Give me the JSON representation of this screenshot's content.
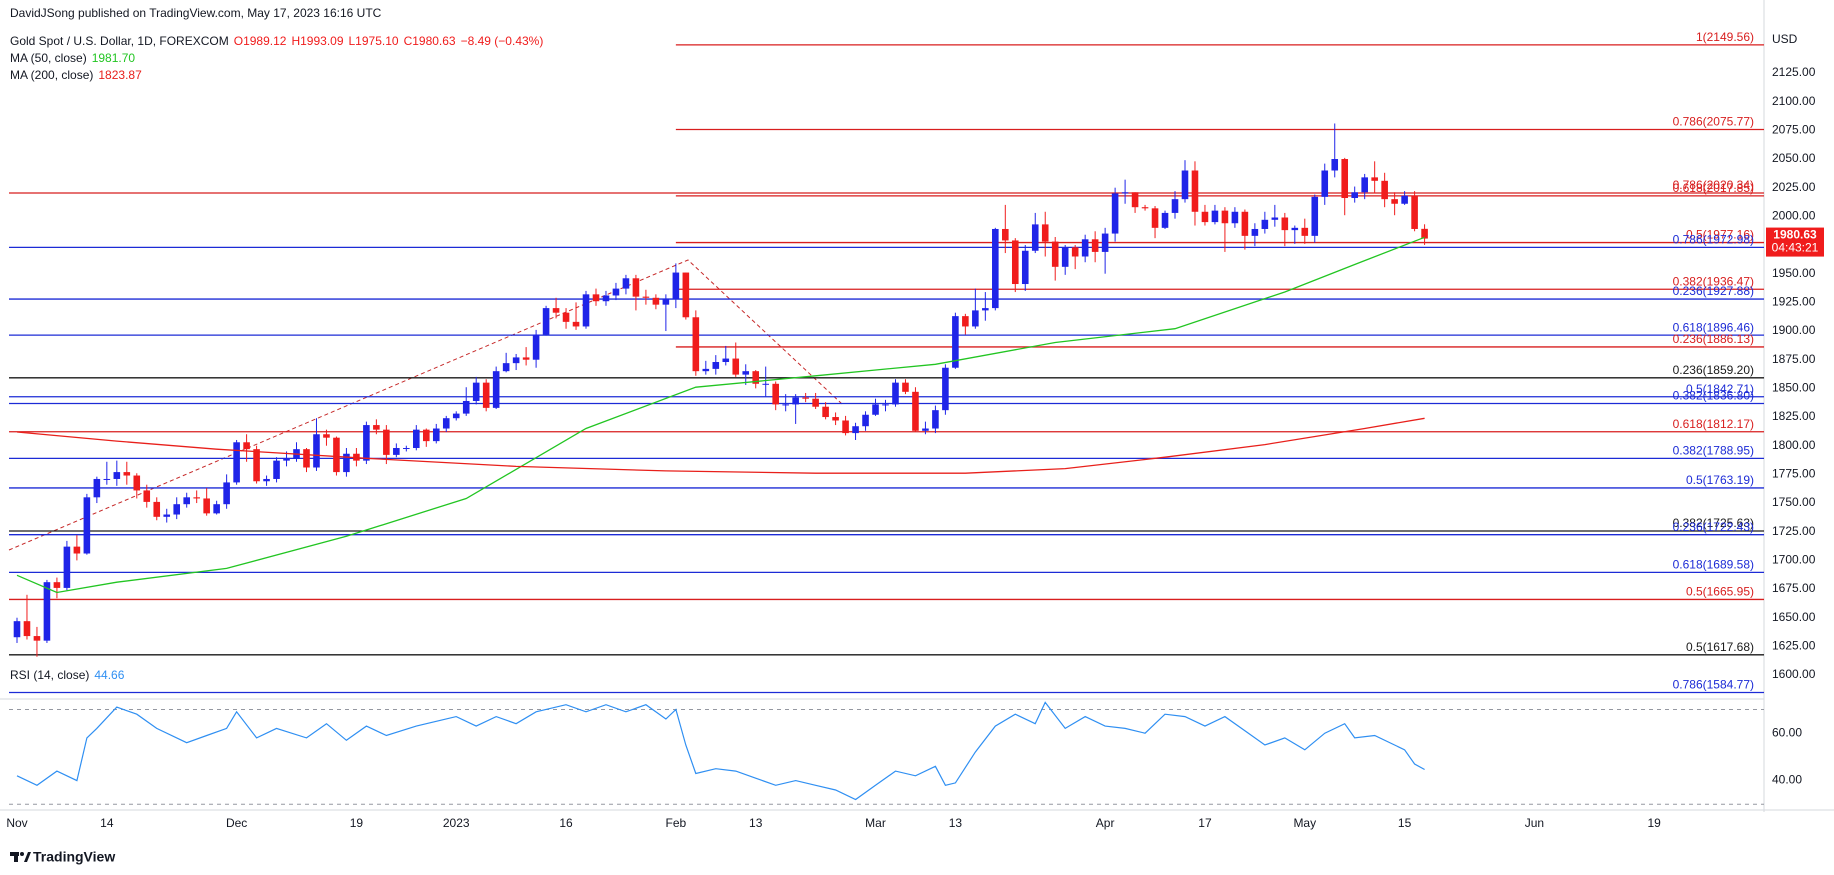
{
  "header": {
    "publisher": "DavidJSong published on TradingView.com, May 17, 2023 16:16 UTC"
  },
  "footer": {
    "logo": "TradingView"
  },
  "chart_data": [
    {
      "type": "candlestick",
      "title": "Gold Spot / U.S. Dollar, 1D, FOREXCOM",
      "ohlc_text": [
        "O1989.12",
        "H1993.09",
        "L1975.10",
        "C1980.63"
      ],
      "change_text": "−8.49 (−0.43%)",
      "currency": "USD",
      "price_tag": {
        "countdown": "04:43:21"
      },
      "up_color": "#1f24e8",
      "down_color": "#f01c1c",
      "xlim": [
        -0.8,
        175
      ],
      "ylim": [
        1580,
        2166
      ],
      "yticks": [
        {
          "value": 1600,
          "label": "1600.00"
        },
        {
          "value": 1625,
          "label": "1625.00"
        },
        {
          "value": 1650,
          "label": "1650.00"
        },
        {
          "value": 1675,
          "label": "1675.00"
        },
        {
          "value": 1700,
          "label": "1700.00"
        },
        {
          "value": 1725,
          "label": "1725.00"
        },
        {
          "value": 1750,
          "label": "1750.00"
        },
        {
          "value": 1775,
          "label": "1775.00"
        },
        {
          "value": 1800,
          "label": "1800.00"
        },
        {
          "value": 1825,
          "label": "1825.00"
        },
        {
          "value": 1850,
          "label": "1850.00"
        },
        {
          "value": 1875,
          "label": "1875.00"
        },
        {
          "value": 1900,
          "label": "1900.00"
        },
        {
          "value": 1925,
          "label": "1925.00"
        },
        {
          "value": 1950,
          "label": "1950.00"
        },
        {
          "value": 1975,
          "label": "1975.00"
        },
        {
          "value": 2000,
          "label": "2000.00"
        },
        {
          "value": 2025,
          "label": "2025.00"
        },
        {
          "value": 2050,
          "label": "2050.00"
        },
        {
          "value": 2075,
          "label": "2075.00"
        },
        {
          "value": 2100,
          "label": "2100.00"
        },
        {
          "value": 2125,
          "label": "2125.00"
        }
      ],
      "open": [
        1633,
        1647,
        1634,
        1630,
        1681,
        1676,
        1712,
        1706,
        1755,
        1771,
        1771,
        1777,
        1774,
        1761,
        1751,
        1738,
        1740,
        1749,
        1755,
        1754,
        1741,
        1749,
        1768,
        1803,
        1797,
        1769,
        1771,
        1787,
        1789,
        1797,
        1781,
        1810,
        1807,
        1777,
        1793,
        1787,
        1818,
        1814,
        1792,
        1798,
        1798,
        1814,
        1804,
        1815,
        1824,
        1828,
        1839,
        1855,
        1833,
        1865,
        1872,
        1877,
        1875,
        1897,
        1920,
        1916,
        1908,
        1904,
        1932,
        1926,
        1931,
        1937,
        1946,
        1930,
        1929,
        1923,
        1928,
        1951,
        1912,
        1865,
        1867,
        1873,
        1876,
        1862,
        1865,
        1854,
        1854,
        1836,
        1836,
        1842,
        1841,
        1834,
        1825,
        1822,
        1811,
        1817,
        1827,
        1836,
        1836,
        1855,
        1847,
        1813,
        1815,
        1831,
        1868,
        1913,
        1904,
        1918,
        1920,
        1989,
        1979,
        1941,
        1970,
        1993,
        1978,
        1956,
        1973,
        1965,
        1980,
        1969,
        1985,
        2020,
        2021,
        2008,
        2007,
        1990,
        2003,
        2015,
        2040,
        2004,
        1995,
        2005,
        1994,
        2004,
        1983,
        1989,
        1997,
        1999,
        1988,
        1990,
        1983,
        2017,
        2040,
        2050,
        2016,
        2021,
        2034,
        2031,
        2015,
        2011,
        2018,
        1989.12
      ],
      "high": [
        1650,
        1670,
        1642,
        1683,
        1685,
        1717,
        1722,
        1758,
        1773,
        1786,
        1787,
        1786,
        1776,
        1766,
        1755,
        1745,
        1755,
        1759,
        1761,
        1763,
        1752,
        1775,
        1805,
        1810,
        1800,
        1774,
        1790,
        1795,
        1803,
        1798,
        1824,
        1814,
        1808,
        1798,
        1798,
        1821,
        1823,
        1818,
        1802,
        1800,
        1818,
        1815,
        1819,
        1826,
        1830,
        1851,
        1860,
        1858,
        1869,
        1881,
        1880,
        1886,
        1901,
        1922,
        1929,
        1920,
        1925,
        1935,
        1937,
        1935,
        1942,
        1949,
        1949,
        1936,
        1932,
        1932,
        1959,
        1951,
        1918,
        1874,
        1879,
        1887,
        1890,
        1871,
        1866,
        1869,
        1856,
        1845,
        1845,
        1846,
        1846,
        1838,
        1829,
        1826,
        1820,
        1830,
        1841,
        1840,
        1858,
        1858,
        1851,
        1821,
        1835,
        1871,
        1916,
        1915,
        1937,
        1934,
        1990,
        2010,
        1981,
        1975,
        2003,
        2004,
        1982,
        1975,
        1975,
        1984,
        1987,
        1990,
        2025,
        2032,
        2021,
        2010,
        2009,
        2005,
        2022,
        2049,
        2048,
        2010,
        2010,
        2008,
        2008,
        2006,
        1994,
        2004,
        2010,
        2003,
        1992,
        1998,
        2019,
        2046,
        2081,
        2051,
        2026,
        2037,
        2048,
        2038,
        2021,
        2022,
        2022,
        1993.09
      ],
      "low": [
        1628,
        1631,
        1616,
        1628,
        1667,
        1674,
        1700,
        1705,
        1750,
        1766,
        1765,
        1766,
        1754,
        1746,
        1735,
        1733,
        1736,
        1746,
        1750,
        1739,
        1740,
        1745,
        1766,
        1786,
        1767,
        1765,
        1768,
        1782,
        1786,
        1777,
        1778,
        1800,
        1774,
        1773,
        1782,
        1784,
        1810,
        1784,
        1790,
        1795,
        1796,
        1799,
        1802,
        1812,
        1822,
        1826,
        1836,
        1830,
        1832,
        1864,
        1866,
        1870,
        1868,
        1896,
        1911,
        1902,
        1901,
        1902,
        1922,
        1922,
        1927,
        1932,
        1918,
        1923,
        1919,
        1900,
        1920,
        1910,
        1861,
        1862,
        1862,
        1870,
        1860,
        1853,
        1850,
        1843,
        1831,
        1830,
        1819,
        1838,
        1832,
        1823,
        1818,
        1809,
        1805,
        1813,
        1826,
        1830,
        1834,
        1845,
        1812,
        1810,
        1811,
        1827,
        1867,
        1897,
        1902,
        1909,
        1918,
        1968,
        1934,
        1935,
        1968,
        1965,
        1944,
        1949,
        1954,
        1960,
        1960,
        1950,
        1978,
        2011,
        2003,
        2005,
        1981,
        1989,
        1998,
        2012,
        1992,
        1992,
        1993,
        1969,
        1990,
        1971,
        1974,
        1985,
        1991,
        1974,
        1976,
        1976,
        1977,
        2010,
        2034,
        2001,
        2012,
        2015,
        2020,
        2008,
        2001,
        2010,
        1987,
        1975.1
      ],
      "close": [
        1647,
        1634,
        1630,
        1681,
        1676,
        1712,
        1706,
        1755,
        1771,
        1771,
        1777,
        1774,
        1761,
        1751,
        1738,
        1740,
        1749,
        1755,
        1754,
        1741,
        1749,
        1768,
        1803,
        1797,
        1769,
        1771,
        1787,
        1789,
        1797,
        1781,
        1810,
        1807,
        1777,
        1793,
        1787,
        1818,
        1814,
        1792,
        1798,
        1798,
        1814,
        1804,
        1815,
        1824,
        1828,
        1839,
        1855,
        1833,
        1865,
        1872,
        1877,
        1875,
        1897,
        1920,
        1916,
        1908,
        1904,
        1932,
        1926,
        1931,
        1937,
        1946,
        1930,
        1929,
        1923,
        1928,
        1951,
        1912,
        1865,
        1867,
        1873,
        1876,
        1862,
        1865,
        1854,
        1854,
        1836,
        1836,
        1842,
        1841,
        1834,
        1825,
        1822,
        1811,
        1817,
        1827,
        1836,
        1836,
        1855,
        1847,
        1813,
        1815,
        1831,
        1868,
        1913,
        1904,
        1918,
        1920,
        1989,
        1979,
        1941,
        1970,
        1993,
        1978,
        1956,
        1973,
        1965,
        1980,
        1969,
        1985,
        2020,
        2021,
        2008,
        2007,
        1990,
        2003,
        2015,
        2040,
        2004,
        1995,
        2005,
        1994,
        2004,
        1983,
        1989,
        1997,
        1999,
        1988,
        1990,
        1983,
        2017,
        2040,
        2050,
        2016,
        2021,
        2034,
        2031,
        2015,
        2011,
        2018,
        1989,
        1980.63
      ],
      "series": [
        {
          "name": "MA (50, close)",
          "color": "#22c522",
          "value_label": "1981.70",
          "x": [
            0,
            4,
            10,
            21,
            33,
            45,
            57,
            68,
            80,
            92,
            104,
            116,
            127,
            134,
            141
          ],
          "values": [
            1687,
            1672,
            1681,
            1693,
            1721,
            1754,
            1815,
            1851,
            1861,
            1871,
            1890,
            1902,
            1934,
            1958,
            1981.7
          ]
        },
        {
          "name": "MA (200, close)",
          "color": "#e8201b",
          "value_label": "1823.87",
          "x": [
            0,
            10,
            20,
            35,
            50,
            65,
            80,
            95,
            105,
            115,
            125,
            135,
            141
          ],
          "values": [
            1812,
            1804,
            1797,
            1789,
            1782,
            1778,
            1776,
            1776,
            1780,
            1790,
            1801,
            1815,
            1823.87
          ]
        }
      ],
      "levels": [
        {
          "label": "1(2149.56)",
          "value": 2149.56,
          "color": "#d81e1e",
          "start": 66
        },
        {
          "label": "0.786(2075.77)",
          "value": 2075.77,
          "color": "#d81e1e",
          "start": 66
        },
        {
          "label": "0.786(2020.34)",
          "value": 2020.34,
          "color": "#d81e1e"
        },
        {
          "label": "0.618(2017.85)",
          "value": 2017.85,
          "color": "#d81e1e",
          "start": 66
        },
        {
          "label": "0.5(1977.16)",
          "value": 1977.16,
          "color": "#d81e1e",
          "start": 66
        },
        {
          "label": "0.786(1972.98)",
          "value": 1972.98,
          "color": "#1c2bd6"
        },
        {
          "label": "0.382(1936.47)",
          "value": 1936.47,
          "color": "#d81e1e",
          "start": 66
        },
        {
          "label": "0.236(1927.88)",
          "value": 1927.88,
          "color": "#1c2bd6"
        },
        {
          "label": "0.618(1896.46)",
          "value": 1896.46,
          "color": "#1c2bd6"
        },
        {
          "label": "0.236(1886.13)",
          "value": 1886.13,
          "color": "#d81e1e",
          "start": 66
        },
        {
          "label": "0.236(1859.20)",
          "value": 1859.2,
          "color": "#1a1a1a"
        },
        {
          "label": "0.5(1842.71)",
          "value": 1842.71,
          "color": "#1c2bd6"
        },
        {
          "label": "0.382(1836.80)",
          "value": 1836.8,
          "color": "#1c2bd6"
        },
        {
          "label": "0.618(1812.17)",
          "value": 1812.17,
          "color": "#d81e1e"
        },
        {
          "label": "0.382(1788.95)",
          "value": 1788.95,
          "color": "#1c2bd6"
        },
        {
          "label": "0.5(1763.19)",
          "value": 1763.19,
          "color": "#1c2bd6"
        },
        {
          "label": "0.382(1725.63)",
          "value": 1725.63,
          "color": "#1a1a1a"
        },
        {
          "label": "0.236(1722.43)",
          "value": 1722.43,
          "color": "#1c2bd6"
        },
        {
          "label": "0.618(1689.58)",
          "value": 1689.58,
          "color": "#1c2bd6"
        },
        {
          "label": "0.5(1665.95)",
          "value": 1665.95,
          "color": "#d81e1e"
        },
        {
          "label": "0.5(1617.68)",
          "value": 1617.68,
          "color": "#1a1a1a"
        },
        {
          "label": "0.786(1584.77)",
          "value": 1584.77,
          "color": "#1c2bd6"
        }
      ]
    },
    {
      "type": "line",
      "ylim": [
        28,
        74
      ],
      "yticks": [
        {
          "value": 40,
          "label": "40.00"
        },
        {
          "value": 60,
          "label": "60.00"
        }
      ],
      "bands": [
        30,
        70
      ],
      "xticks": [
        {
          "value": 0,
          "label": "Nov"
        },
        {
          "value": 9,
          "label": "14"
        },
        {
          "value": 22,
          "label": "Dec"
        },
        {
          "value": 34,
          "label": "19"
        },
        {
          "value": 44,
          "label": "2023"
        },
        {
          "value": 55,
          "label": "16"
        },
        {
          "value": 66,
          "label": "Feb"
        },
        {
          "value": 74,
          "label": "13"
        },
        {
          "value": 86,
          "label": "Mar"
        },
        {
          "value": 94,
          "label": "13"
        },
        {
          "value": 109,
          "label": "Apr"
        },
        {
          "value": 119,
          "label": "17"
        },
        {
          "value": 129,
          "label": "May"
        },
        {
          "value": 139,
          "label": "15"
        },
        {
          "value": 152,
          "label": "Jun"
        },
        {
          "value": 164,
          "label": "19"
        }
      ],
      "series": [
        {
          "name": "RSI (14, close)",
          "color": "#2f8ff2",
          "x": [
            0,
            2,
            4,
            6,
            7,
            8,
            10,
            12,
            14,
            17,
            19,
            21,
            22,
            24,
            26,
            29,
            31,
            33,
            35,
            37,
            40,
            42,
            44,
            46,
            48,
            50,
            52,
            55,
            57,
            59,
            61,
            63,
            65,
            66,
            67,
            68,
            70,
            72,
            74,
            76,
            78,
            80,
            82,
            84,
            86,
            88,
            90,
            92,
            93,
            94,
            96,
            98,
            100,
            102,
            103,
            105,
            107,
            109,
            111,
            113,
            115,
            117,
            119,
            121,
            123,
            125,
            127,
            129,
            131,
            133,
            134,
            136,
            138,
            139,
            140,
            141
          ],
          "values": [
            42,
            38,
            44,
            40,
            58,
            62,
            71,
            68,
            62,
            56,
            59,
            62,
            69,
            58,
            62,
            58,
            64,
            57,
            63,
            59,
            63,
            65,
            67,
            63,
            67,
            64,
            69,
            72,
            69,
            72,
            69,
            72,
            66,
            70,
            55,
            43,
            45,
            44,
            41,
            38,
            40,
            38,
            36,
            32,
            38,
            44,
            42,
            46,
            38,
            39,
            52,
            63,
            68,
            64,
            73,
            62,
            67,
            63,
            62,
            60,
            68,
            67,
            63,
            67,
            61,
            55,
            58,
            53,
            60,
            64,
            58,
            59,
            55,
            53,
            47,
            44.66
          ]
        }
      ]
    }
  ]
}
